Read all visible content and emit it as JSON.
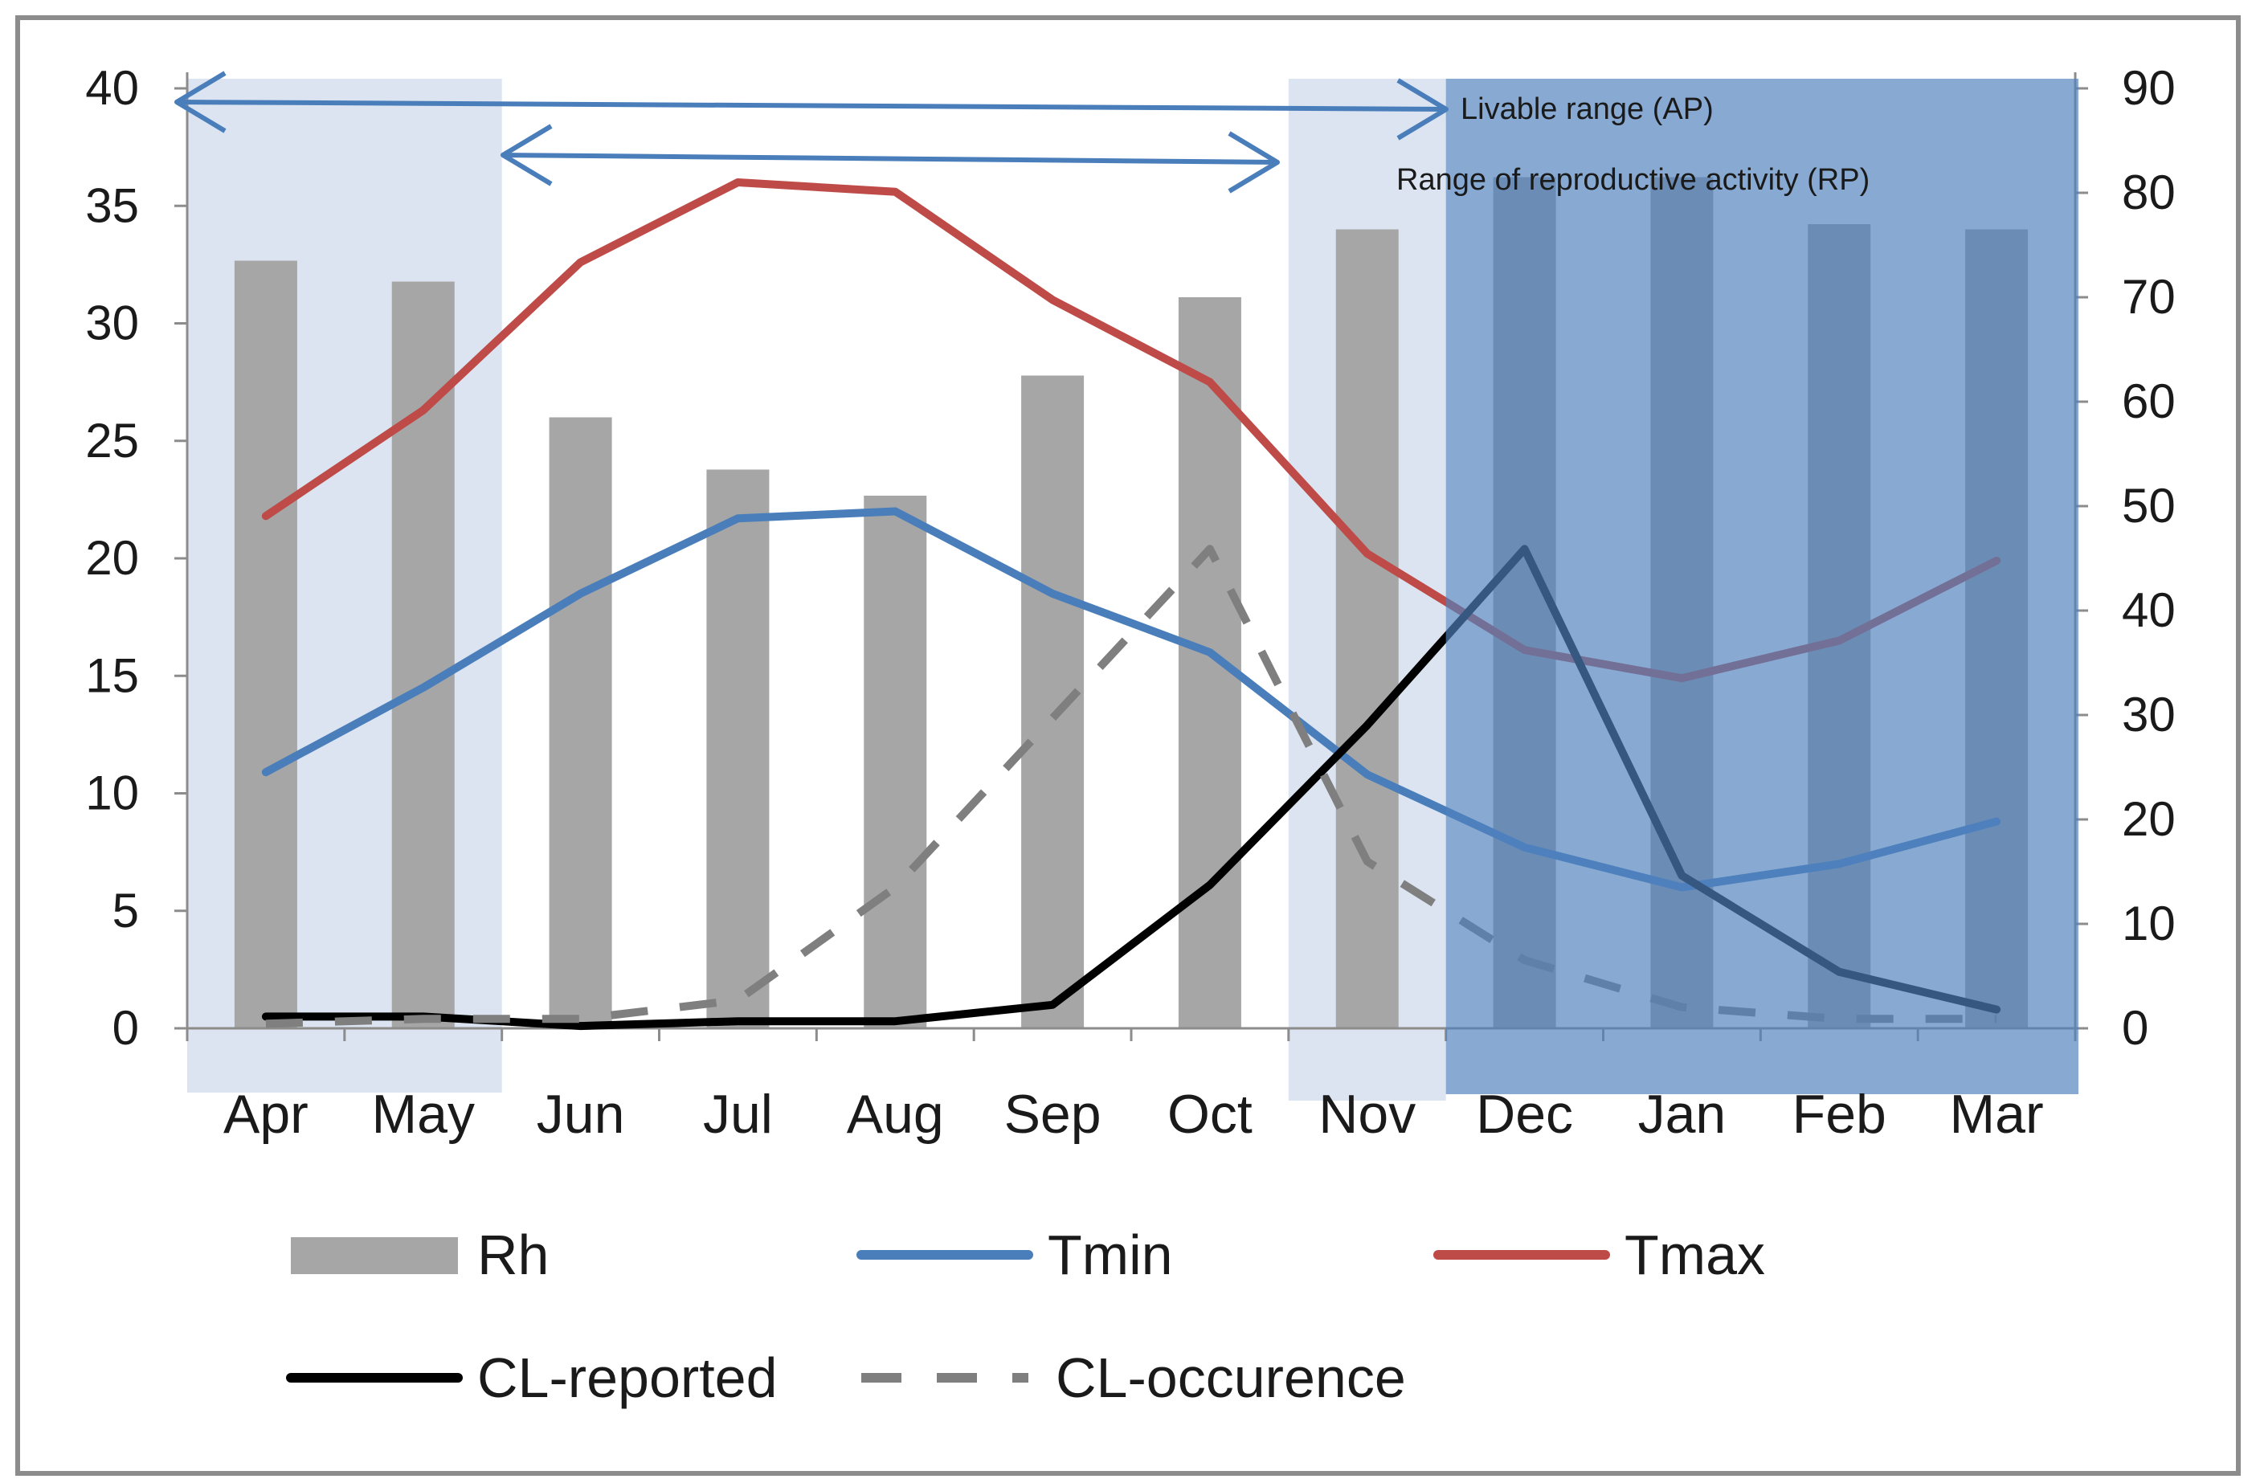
{
  "chart_data": {
    "type": "bar+line",
    "title": "",
    "categories": [
      "Apr",
      "May",
      "Jun",
      "Jul",
      "Aug",
      "Sep",
      "Oct",
      "Nov",
      "Dec",
      "Jan",
      "Feb",
      "Mar"
    ],
    "left_axis": {
      "range": [
        0,
        40
      ],
      "ticks": [
        "0",
        "5",
        "10",
        "15",
        "20",
        "25",
        "30",
        "35",
        "40"
      ]
    },
    "right_axis": {
      "range": [
        0,
        90
      ],
      "ticks": [
        "0",
        "10",
        "20",
        "30",
        "40",
        "50",
        "60",
        "70",
        "80",
        "90"
      ]
    },
    "series": [
      {
        "name": "Rh",
        "type": "bar",
        "axis": "right",
        "color": "#a6a6a6",
        "values": [
          73.5,
          71.5,
          58.5,
          53.5,
          51,
          62.5,
          70,
          76.5,
          81.5,
          81.5,
          77,
          76.5
        ]
      },
      {
        "name": "Tmin",
        "type": "line",
        "axis": "left",
        "color": "#4a7ebb",
        "dash": "solid",
        "values": [
          10.9,
          14.5,
          18.5,
          21.7,
          22.0,
          18.5,
          16.0,
          10.8,
          7.7,
          6.0,
          7.0,
          8.8
        ]
      },
      {
        "name": "Tmax",
        "type": "line",
        "axis": "left",
        "color": "#be4b48",
        "dash": "solid",
        "values": [
          21.8,
          26.3,
          32.6,
          36.0,
          35.6,
          31.0,
          27.5,
          20.2,
          16.1,
          14.9,
          16.5,
          19.9
        ]
      },
      {
        "name": "CL-reported",
        "type": "line",
        "axis": "left",
        "color": "#000000",
        "dash": "solid",
        "values": [
          0.5,
          0.5,
          0.1,
          0.3,
          0.3,
          1.0,
          6.1,
          12.9,
          20.4,
          6.5,
          2.4,
          0.8
        ]
      },
      {
        "name": "CL-occurence",
        "type": "line",
        "axis": "left",
        "color": "#7f7f7f",
        "dash": "dash",
        "values": [
          0.2,
          0.4,
          0.4,
          1.2,
          6.0,
          13.2,
          20.4,
          7.1,
          2.9,
          0.9,
          0.4,
          0.4
        ]
      }
    ],
    "shaded_periods": [
      {
        "months": [
          "Apr",
          "May"
        ],
        "shade": "light"
      },
      {
        "months": [
          "Nov"
        ],
        "shade": "light"
      },
      {
        "months": [
          "Dec",
          "Jan",
          "Feb",
          "Mar"
        ],
        "shade": "dark"
      }
    ],
    "annotations": [
      {
        "label": "Livable range (AP)",
        "from": "Apr",
        "to": "Nov"
      },
      {
        "label": "Range of reproductive activity (RP)",
        "from": "Jun",
        "to": "Oct"
      }
    ],
    "legend": [
      "Rh",
      "Tmin",
      "Tmax",
      "CL-reported",
      "CL-occurence"
    ]
  }
}
